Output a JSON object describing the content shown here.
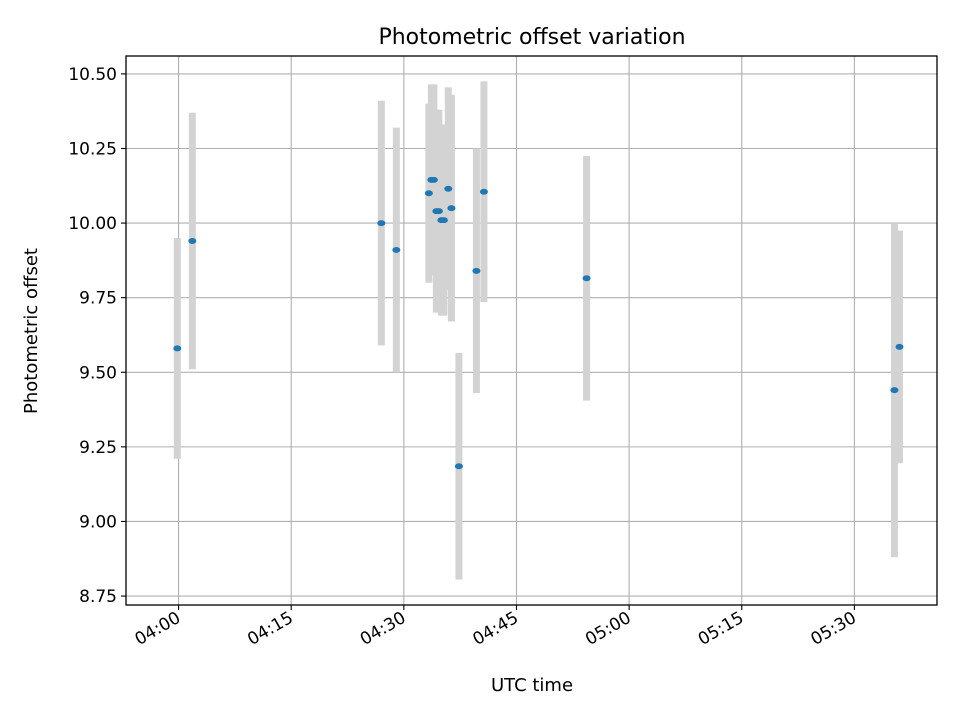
{
  "chart_data": {
    "type": "scatter",
    "title": "Photometric offset variation",
    "xlabel": "UTC time",
    "ylabel": "Photometric offset",
    "xlim": [
      "03:53",
      "05:41"
    ],
    "ylim": [
      8.72,
      10.56
    ],
    "grid": true,
    "x_ticks": [
      "04:00",
      "04:15",
      "04:30",
      "04:45",
      "05:00",
      "05:15",
      "05:30"
    ],
    "y_ticks": [
      "8.75",
      "9.00",
      "9.25",
      "9.50",
      "9.75",
      "10.00",
      "10.25",
      "10.50"
    ],
    "point_color": "#1f77b4",
    "errorbar_color": "#d3d3d3",
    "series": [
      {
        "points": [
          {
            "t": "03:59:50",
            "y": 9.58,
            "err": 0.37
          },
          {
            "t": "04:01:50",
            "y": 9.94,
            "err": 0.43
          },
          {
            "t": "04:27:00",
            "y": 10.0,
            "err": 0.41
          },
          {
            "t": "04:29:00",
            "y": 9.91,
            "err": 0.41
          },
          {
            "t": "04:33:20",
            "y": 10.1,
            "err": 0.3
          },
          {
            "t": "04:33:40",
            "y": 10.145,
            "err": 0.32
          },
          {
            "t": "04:34:00",
            "y": 10.145,
            "err": 0.32
          },
          {
            "t": "04:34:20",
            "y": 10.04,
            "err": 0.34
          },
          {
            "t": "04:34:40",
            "y": 10.04,
            "err": 0.34
          },
          {
            "t": "04:35:00",
            "y": 10.01,
            "err": 0.32
          },
          {
            "t": "04:35:20",
            "y": 10.01,
            "err": 0.32
          },
          {
            "t": "04:35:55",
            "y": 10.115,
            "err": 0.34
          },
          {
            "t": "04:36:20",
            "y": 10.05,
            "err": 0.38
          },
          {
            "t": "04:37:20",
            "y": 9.185,
            "err": 0.38
          },
          {
            "t": "04:39:40",
            "y": 9.84,
            "err": 0.41
          },
          {
            "t": "04:40:40",
            "y": 10.105,
            "err": 0.37
          },
          {
            "t": "04:54:20",
            "y": 9.815,
            "err": 0.41
          },
          {
            "t": "05:35:20",
            "y": 9.44,
            "err": 0.56
          },
          {
            "t": "05:36:00",
            "y": 9.585,
            "err": 0.39
          }
        ]
      }
    ]
  }
}
